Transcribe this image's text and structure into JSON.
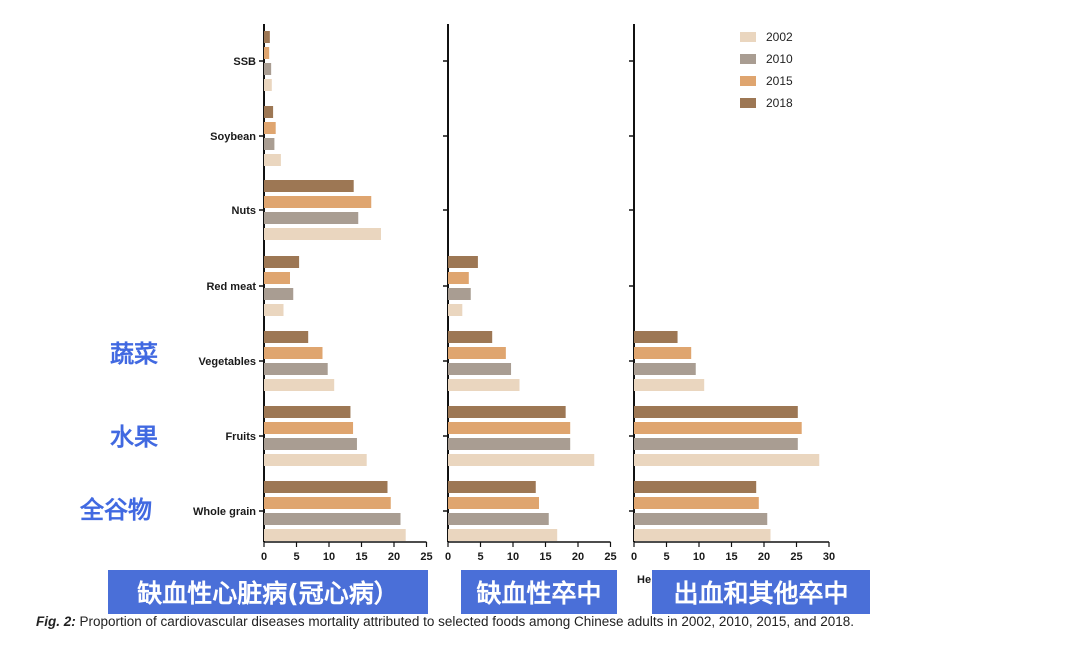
{
  "chart_data": {
    "type": "bar",
    "orientation": "horizontal",
    "categories": [
      "SSB",
      "Soybean",
      "Nuts",
      "Red meat",
      "Vegetables",
      "Fruits",
      "Whole grain"
    ],
    "category_labels_cn": {
      "Vegetables": "蔬菜",
      "Fruits": "水果",
      "Whole grain": "全谷物"
    },
    "legend": {
      "placement": "top-right",
      "entries": [
        {
          "name": "2002",
          "color": "#ead6bf"
        },
        {
          "name": "2010",
          "color": "#a99d92"
        },
        {
          "name": "2015",
          "color": "#dfa56f"
        },
        {
          "name": "2018",
          "color": "#9d7754"
        }
      ]
    },
    "panels": [
      {
        "label": "缺血性心脏病(冠心病）",
        "xlim": [
          0,
          25
        ],
        "xticks": [
          "0",
          "5",
          "10",
          "15",
          "20",
          "25"
        ],
        "series": [
          {
            "name": "2002",
            "values": [
              1.2,
              2.6,
              18.0,
              3.0,
              10.8,
              15.8,
              21.8
            ]
          },
          {
            "name": "2010",
            "values": [
              1.1,
              1.6,
              14.5,
              4.5,
              9.8,
              14.3,
              21.0
            ]
          },
          {
            "name": "2015",
            "values": [
              0.8,
              1.8,
              16.5,
              4.0,
              9.0,
              13.7,
              19.5
            ]
          },
          {
            "name": "2018",
            "values": [
              0.9,
              1.4,
              13.8,
              5.4,
              6.8,
              13.3,
              19.0
            ]
          }
        ]
      },
      {
        "label": "缺血性卒中",
        "xlim": [
          0,
          25
        ],
        "xticks": [
          "0",
          "5",
          "10",
          "15",
          "20",
          "25"
        ],
        "series": [
          {
            "name": "2002",
            "values": [
              null,
              null,
              null,
              2.2,
              11.0,
              22.5,
              16.8
            ]
          },
          {
            "name": "2010",
            "values": [
              null,
              null,
              null,
              3.5,
              9.7,
              18.8,
              15.5
            ]
          },
          {
            "name": "2015",
            "values": [
              null,
              null,
              null,
              3.2,
              8.9,
              18.8,
              14.0
            ]
          },
          {
            "name": "2018",
            "values": [
              null,
              null,
              null,
              4.6,
              6.8,
              18.1,
              13.5
            ]
          }
        ]
      },
      {
        "label": "出血和其他卒中",
        "xlim": [
          0,
          30
        ],
        "xticks": [
          "0",
          "5",
          "10",
          "15",
          "20",
          "25",
          "30"
        ],
        "series": [
          {
            "name": "2002",
            "values": [
              null,
              null,
              null,
              null,
              10.8,
              28.5,
              21.0
            ]
          },
          {
            "name": "2010",
            "values": [
              null,
              null,
              null,
              null,
              9.5,
              25.2,
              20.5
            ]
          },
          {
            "name": "2015",
            "values": [
              null,
              null,
              null,
              null,
              8.8,
              25.8,
              19.2
            ]
          },
          {
            "name": "2018",
            "values": [
              null,
              null,
              null,
              null,
              6.7,
              25.2,
              18.8
            ]
          }
        ]
      }
    ]
  },
  "panel_stub_text": "He",
  "caption": {
    "fig_label": "Fig. 2:",
    "text": " Proportion of cardiovascular diseases mortality attributed to selected foods among Chinese adults in 2002, 2010, 2015, and 2018."
  }
}
